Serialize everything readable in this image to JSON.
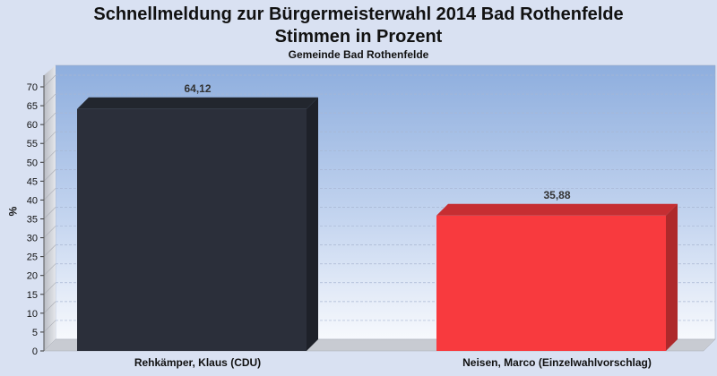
{
  "chart_data": {
    "type": "bar",
    "title": "Schnellmeldung zur Bürgermeisterwahl 2014 Bad Rothenfelde",
    "subtitle": "Stimmen in Prozent",
    "caption": "Gemeinde Bad Rothenfelde",
    "ylabel": "%",
    "ylim": [
      0,
      70
    ],
    "yticks": [
      0,
      5,
      10,
      15,
      20,
      25,
      30,
      35,
      40,
      45,
      50,
      55,
      60,
      65,
      70
    ],
    "categories": [
      "Rehkämper, Klaus (CDU)",
      "Neisen, Marco (Einzelwahlvorschlag)"
    ],
    "values": [
      64.12,
      35.88
    ],
    "value_labels": [
      "64,12",
      "35,88"
    ],
    "colors": [
      "#2b2f3a",
      "#f83a3e"
    ],
    "grid": true,
    "legend": "none"
  }
}
